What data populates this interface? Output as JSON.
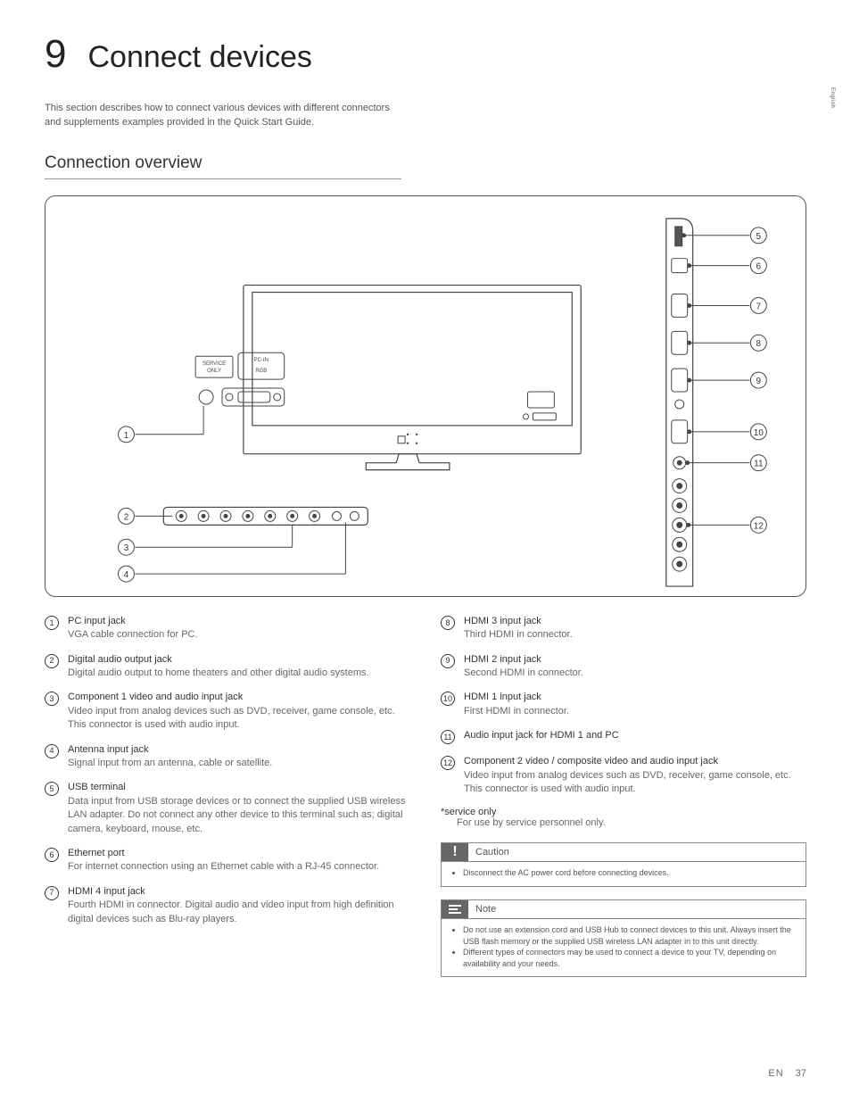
{
  "side_tab": "English",
  "chapter": {
    "number": "9",
    "title": "Connect devices"
  },
  "intro": "This section describes how to connect various devices with different connectors and supplements examples provided in the Quick Start Guide.",
  "section_heading": "Connection overview",
  "diagram": {
    "box_labels": {
      "service": "SERVICE\nONLY",
      "pcin": "PC-IN",
      "rgb": "RGB"
    },
    "left_callouts": [
      "1",
      "2",
      "3",
      "4"
    ],
    "right_callouts": [
      "5",
      "6",
      "7",
      "8",
      "9",
      "10",
      "11",
      "12"
    ]
  },
  "items_left": [
    {
      "n": "1",
      "title": "PC input jack",
      "desc": "VGA cable connection for PC."
    },
    {
      "n": "2",
      "title": "Digital audio output jack",
      "desc": "Digital audio output to home theaters and other digital audio systems."
    },
    {
      "n": "3",
      "title": "Component 1 video and audio input jack",
      "desc": "Video input from analog devices such as DVD, receiver, game console, etc. This connector is used with audio input."
    },
    {
      "n": "4",
      "title": "Antenna input jack",
      "desc": "Signal input from an antenna, cable or satellite."
    },
    {
      "n": "5",
      "title": "USB terminal",
      "desc": "Data input from USB storage devices or to connect the supplied USB wireless LAN adapter. Do not connect any other device to this terminal such as; digital camera, keyboard, mouse, etc."
    },
    {
      "n": "6",
      "title": "Ethernet port",
      "desc": "For internet connection using an Ethernet cable with a RJ-45 connector."
    },
    {
      "n": "7",
      "title": "HDMI 4 input jack",
      "desc": "Fourth HDMI in connector.\nDigital audio and video input from high definition digital devices such as Blu-ray players."
    }
  ],
  "items_right": [
    {
      "n": "8",
      "title": "HDMI 3 input jack",
      "desc": "Third HDMI in connector."
    },
    {
      "n": "9",
      "title": "HDMI 2 input jack",
      "desc": "Second HDMI in connector."
    },
    {
      "n": "10",
      "title": "HDMI 1 input jack",
      "desc": "First HDMI in connector."
    },
    {
      "n": "11",
      "title": "Audio input jack for HDMI 1 and PC",
      "desc": ""
    },
    {
      "n": "12",
      "title": "Component 2 video / composite video and audio input jack",
      "desc": "Video input from analog devices such as DVD, receiver, game console, etc. This connector is used with audio input."
    }
  ],
  "service_only": {
    "title": "*service only",
    "desc": "For use by service personnel only."
  },
  "caution": {
    "label": "Caution",
    "bullets": [
      "Disconnect the AC power cord before connecting devices."
    ]
  },
  "note": {
    "label": "Note",
    "bullets": [
      "Do not use an extension cord and USB Hub to connect devices to this unit. Always insert the USB flash memory or the supplied USB wireless LAN adapter in to this unit directly.",
      "Different types of connectors may be used to connect a device to your TV, depending on availability and your needs."
    ]
  },
  "footer": {
    "lang": "EN",
    "page": "37"
  }
}
